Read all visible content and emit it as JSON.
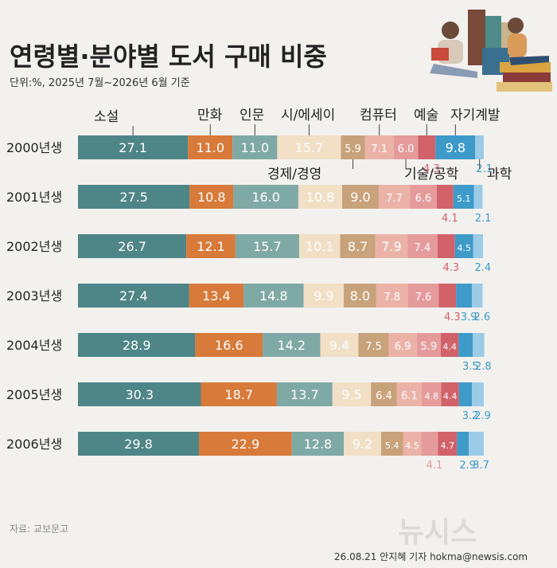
{
  "chart_data": {
    "type": "bar",
    "stacked": true,
    "orientation": "horizontal",
    "title": "연령별·분야별 도서 구매 비중",
    "subtitle": "단위:%, 2025년 7월~2026년 6월 기준",
    "source": "자료: 교보문고",
    "credit": "26.08.21 안지혜 기자 hokma@newsis.com",
    "watermark": "뉴시스",
    "categories": [
      "2000년생",
      "2001년생",
      "2002년생",
      "2003년생",
      "2004년생",
      "2005년생",
      "2006년생"
    ],
    "series": [
      {
        "name": "소설",
        "color": "#4e8587",
        "values": [
          27.1,
          27.5,
          26.7,
          27.4,
          28.9,
          30.3,
          29.8
        ]
      },
      {
        "name": "만화",
        "color": "#d77a3a",
        "values": [
          11.0,
          10.8,
          12.1,
          13.4,
          16.6,
          18.7,
          22.9
        ]
      },
      {
        "name": "인문",
        "color": "#7fa9a5",
        "values": [
          11.0,
          16.0,
          15.7,
          14.8,
          14.2,
          13.7,
          12.8
        ]
      },
      {
        "name": "시/에세이",
        "color": "#f1dfc6",
        "values": [
          15.7,
          10.8,
          10.1,
          9.9,
          9.4,
          9.5,
          9.2
        ]
      },
      {
        "name": "경제/경영",
        "color": "#c8a27a",
        "values": [
          5.9,
          9.0,
          8.7,
          8.0,
          7.5,
          6.4,
          5.4
        ]
      },
      {
        "name": "컴퓨터",
        "color": "#ebb3a7",
        "values": [
          7.1,
          7.7,
          7.9,
          7.8,
          6.9,
          6.1,
          4.5
        ]
      },
      {
        "name": "기술/공학",
        "color": "#e59b9b",
        "values": [
          6.0,
          6.6,
          7.4,
          7.6,
          5.9,
          4.8,
          4.1
        ]
      },
      {
        "name": "예술",
        "color": "#d1626a",
        "values": [
          4.3,
          4.1,
          4.3,
          4.3,
          4.4,
          4.4,
          4.7
        ]
      },
      {
        "name": "자기계발",
        "color": "#3d9ac9",
        "values": [
          9.8,
          5.1,
          4.5,
          3.9,
          3.5,
          3.2,
          2.9
        ]
      },
      {
        "name": "과학",
        "color": "#9ccbe8",
        "values": [
          2.1,
          2.1,
          2.4,
          2.6,
          2.8,
          2.9,
          3.7
        ]
      }
    ]
  }
}
